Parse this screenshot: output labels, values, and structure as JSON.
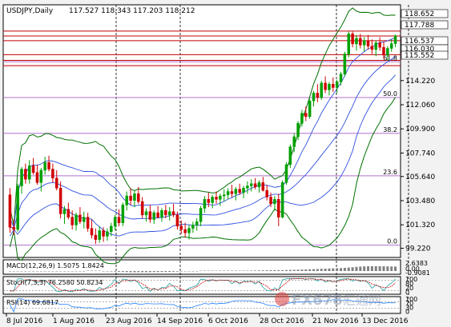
{
  "chart_data": {
    "type": "candlestick",
    "symbol": "USDJPY",
    "timeframe": "Daily",
    "header": {
      "symbol_label": "USDJPY,Daily",
      "ohlc": "117.527 118.343 117.203 118.212"
    },
    "price_axis": {
      "ylim": [
        98.4,
        121.0
      ],
      "ticks": [
        "114.220",
        "112.060",
        "109.900",
        "107.740",
        "105.640",
        "103.480",
        "101.320",
        "99.220"
      ],
      "tick_values": [
        114.22,
        112.06,
        109.9,
        107.74,
        105.64,
        103.48,
        101.32,
        99.22
      ]
    },
    "date_axis": {
      "labels": [
        "8 Jul 2016",
        "1 Aug 2016",
        "23 Aug 2016",
        "14 Sep 2016",
        "6 Oct 2016",
        "28 Oct 2016",
        "21 Nov 2016",
        "13 Dec 2016"
      ]
    },
    "price_tags": [
      {
        "label": "118.652",
        "value": 118.652,
        "color": "#ffffff",
        "text_color": "#000000"
      },
      {
        "label": "117.788",
        "value": 117.788,
        "color": "#ffffff",
        "text_color": "#000000"
      },
      {
        "label": "116.537",
        "value": 116.537,
        "color": "#ffffff",
        "text_color": "#000000"
      },
      {
        "label": "116.030",
        "value": 116.03,
        "color": "#ffffff",
        "text_color": "#000000"
      },
      {
        "label": "115.552",
        "value": 115.552,
        "color": "#ffffff",
        "text_color": "#000000"
      }
    ],
    "horizontal_levels": [
      118.652,
      118.212,
      117.788,
      116.537,
      116.03,
      115.552
    ],
    "fibonacci": {
      "color": "#b070d0",
      "levels": [
        {
          "label": "61.8",
          "value": 115.9
        },
        {
          "label": "50.0",
          "value": 112.7
        },
        {
          "label": "38.2",
          "value": 109.5
        },
        {
          "label": "23.6",
          "value": 105.7
        },
        {
          "label": "0.0",
          "value": 99.5
        }
      ]
    },
    "candles": [
      [
        104.0,
        104.6,
        100.6,
        101.1
      ],
      [
        101.1,
        101.8,
        100.4,
        100.9
      ],
      [
        100.9,
        105.0,
        100.7,
        104.8
      ],
      [
        104.8,
        106.5,
        104.1,
        106.3
      ],
      [
        106.3,
        106.8,
        105.0,
        105.4
      ],
      [
        105.4,
        107.1,
        105.0,
        106.6
      ],
      [
        106.6,
        107.3,
        105.8,
        106.0
      ],
      [
        106.0,
        106.7,
        104.9,
        105.1
      ],
      [
        105.1,
        106.4,
        104.3,
        106.2
      ],
      [
        106.2,
        107.4,
        105.8,
        106.9
      ],
      [
        106.9,
        107.5,
        106.1,
        106.3
      ],
      [
        106.3,
        106.8,
        105.1,
        105.5
      ],
      [
        105.5,
        106.2,
        104.4,
        104.6
      ],
      [
        104.6,
        105.2,
        101.9,
        102.3
      ],
      [
        102.3,
        103.0,
        101.4,
        102.7
      ],
      [
        102.7,
        103.3,
        101.8,
        102.0
      ],
      [
        102.0,
        102.6,
        100.9,
        101.3
      ],
      [
        101.3,
        102.4,
        100.8,
        102.2
      ],
      [
        102.2,
        102.9,
        101.4,
        101.6
      ],
      [
        101.6,
        102.5,
        101.0,
        102.0
      ],
      [
        102.0,
        102.4,
        100.7,
        101.0
      ],
      [
        101.0,
        101.8,
        100.1,
        100.4
      ],
      [
        100.4,
        101.0,
        99.6,
        100.0
      ],
      [
        100.0,
        101.2,
        99.7,
        100.8
      ],
      [
        100.8,
        101.1,
        99.8,
        100.3
      ],
      [
        100.3,
        101.0,
        99.9,
        100.7
      ],
      [
        100.7,
        101.5,
        100.3,
        101.2
      ],
      [
        101.2,
        102.2,
        100.8,
        102.0
      ],
      [
        102.0,
        102.7,
        101.2,
        101.5
      ],
      [
        101.5,
        103.3,
        101.2,
        103.1
      ],
      [
        103.1,
        104.3,
        102.6,
        103.9
      ],
      [
        103.9,
        104.6,
        103.1,
        103.5
      ],
      [
        103.5,
        104.4,
        102.9,
        104.1
      ],
      [
        104.1,
        104.7,
        103.2,
        103.4
      ],
      [
        103.4,
        103.8,
        101.9,
        102.2
      ],
      [
        102.2,
        102.8,
        101.6,
        102.5
      ],
      [
        102.5,
        103.1,
        101.5,
        101.8
      ],
      [
        101.8,
        102.6,
        101.4,
        102.4
      ],
      [
        102.4,
        103.0,
        101.9,
        102.0
      ],
      [
        102.0,
        102.8,
        101.6,
        102.6
      ],
      [
        102.6,
        103.1,
        101.9,
        102.2
      ],
      [
        102.2,
        102.9,
        101.7,
        102.5
      ],
      [
        102.5,
        103.2,
        102.0,
        102.2
      ],
      [
        102.2,
        102.5,
        100.9,
        101.2
      ],
      [
        101.2,
        101.7,
        100.5,
        100.9
      ],
      [
        100.9,
        101.5,
        100.2,
        100.6
      ],
      [
        100.6,
        101.3,
        100.0,
        101.0
      ],
      [
        101.0,
        101.6,
        100.6,
        101.3
      ],
      [
        101.3,
        101.9,
        100.8,
        101.6
      ],
      [
        101.6,
        103.0,
        101.2,
        102.8
      ],
      [
        102.8,
        103.9,
        102.4,
        103.6
      ],
      [
        103.6,
        104.2,
        102.9,
        103.3
      ],
      [
        103.3,
        104.0,
        102.8,
        103.8
      ],
      [
        103.8,
        104.3,
        103.2,
        103.6
      ],
      [
        103.6,
        104.1,
        103.0,
        103.9
      ],
      [
        103.9,
        104.5,
        103.4,
        104.0
      ],
      [
        104.0,
        104.6,
        103.6,
        104.3
      ],
      [
        104.3,
        104.9,
        103.8,
        104.1
      ],
      [
        104.1,
        104.7,
        103.5,
        104.5
      ],
      [
        104.5,
        105.0,
        104.0,
        104.2
      ],
      [
        104.2,
        104.8,
        103.7,
        104.6
      ],
      [
        104.6,
        105.2,
        104.1,
        104.8
      ],
      [
        104.8,
        105.4,
        104.3,
        105.0
      ],
      [
        105.0,
        105.5,
        104.5,
        104.7
      ],
      [
        104.7,
        105.3,
        104.2,
        105.1
      ],
      [
        105.1,
        105.6,
        104.3,
        104.4
      ],
      [
        104.4,
        104.9,
        103.5,
        103.8
      ],
      [
        103.8,
        104.2,
        102.9,
        103.2
      ],
      [
        103.2,
        103.9,
        102.6,
        103.6
      ],
      [
        103.6,
        104.1,
        101.2,
        102.0
      ],
      [
        102.0,
        105.3,
        101.9,
        105.1
      ],
      [
        105.1,
        106.9,
        104.9,
        106.7
      ],
      [
        106.7,
        108.5,
        106.4,
        108.3
      ],
      [
        108.3,
        109.5,
        107.8,
        109.2
      ],
      [
        109.2,
        110.6,
        108.9,
        110.4
      ],
      [
        110.4,
        111.6,
        110.1,
        111.3
      ],
      [
        111.3,
        111.9,
        110.6,
        111.0
      ],
      [
        111.0,
        112.6,
        110.8,
        112.4
      ],
      [
        112.4,
        113.3,
        111.9,
        113.1
      ],
      [
        113.1,
        113.9,
        112.3,
        112.7
      ],
      [
        112.7,
        114.2,
        112.5,
        114.0
      ],
      [
        114.0,
        114.6,
        113.1,
        113.4
      ],
      [
        113.4,
        114.1,
        112.9,
        113.9
      ],
      [
        113.9,
        114.5,
        113.2,
        113.6
      ],
      [
        113.6,
        114.3,
        113.1,
        114.1
      ],
      [
        114.1,
        115.0,
        113.8,
        114.8
      ],
      [
        114.8,
        116.8,
        114.6,
        116.6
      ],
      [
        116.6,
        118.6,
        116.3,
        118.4
      ],
      [
        118.4,
        118.6,
        117.2,
        117.5
      ],
      [
        117.5,
        118.3,
        116.9,
        118.0
      ],
      [
        118.0,
        118.4,
        117.1,
        117.4
      ],
      [
        117.4,
        118.1,
        116.8,
        117.8
      ],
      [
        117.8,
        118.3,
        117.0,
        117.3
      ],
      [
        117.3,
        117.9,
        116.6,
        117.0
      ],
      [
        117.0,
        117.8,
        116.4,
        117.6
      ],
      [
        117.6,
        118.1,
        116.9,
        117.2
      ],
      [
        117.2,
        117.7,
        116.2,
        116.5
      ],
      [
        116.5,
        117.3,
        116.0,
        117.1
      ],
      [
        117.1,
        117.9,
        116.8,
        117.53
      ],
      [
        117.527,
        118.343,
        117.203,
        118.212
      ]
    ],
    "indicators": {
      "macd": {
        "label": "MACD(12,26,9) 1.5075 1.8424",
        "scale": [
          "2.6383",
          "0.00",
          "-0.9081"
        ]
      },
      "stoch": {
        "label": "Stoch(7,3,3) 76.2580 50.8234",
        "scale": [
          "100",
          "80",
          "20",
          "0"
        ]
      },
      "rsi": {
        "label": "RSI(14) 69.6817",
        "scale": [
          "100",
          "70",
          "30",
          "0"
        ]
      }
    },
    "grid": false,
    "watermark": {
      "text_ltr": "FX678",
      "text_cjk": "汇通网"
    }
  }
}
